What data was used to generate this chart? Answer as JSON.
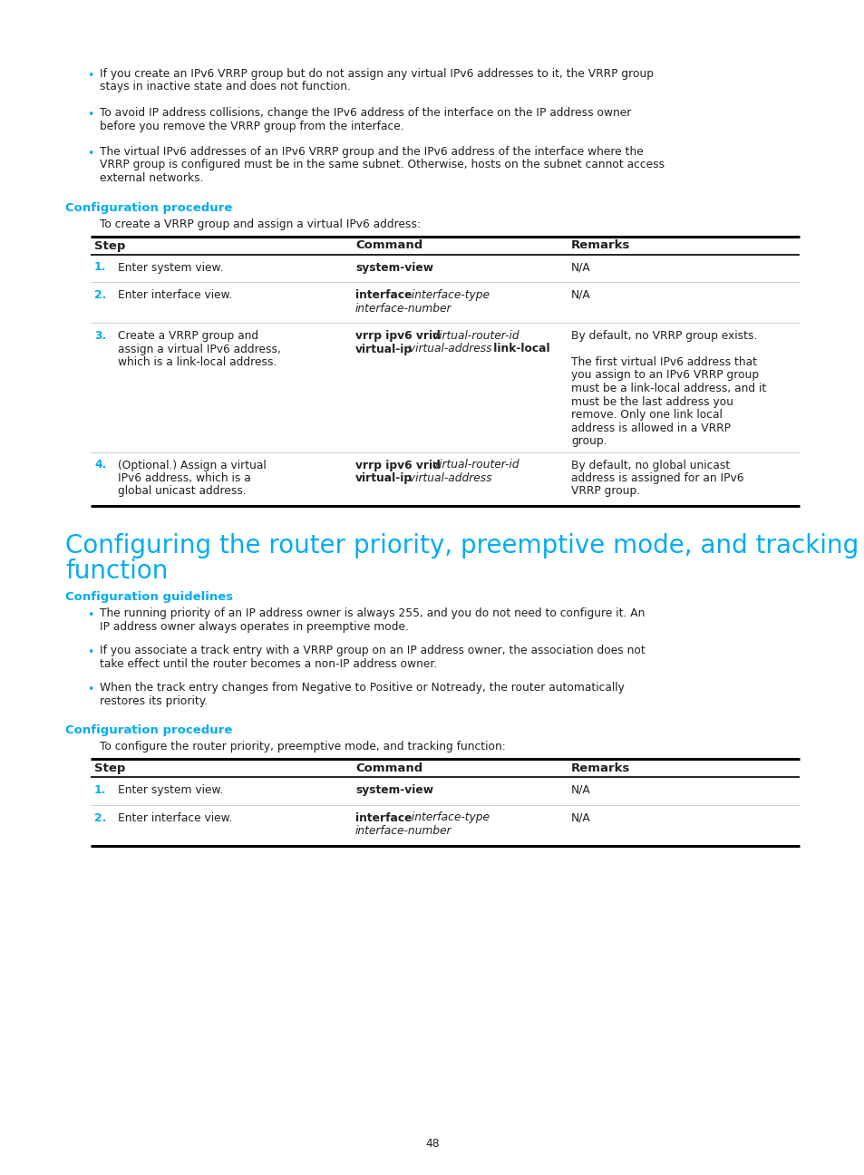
{
  "bg_color": "#ffffff",
  "text_color": "#231f20",
  "cyan_color": "#00adef",
  "page_number": "48",
  "bullet_points_top": [
    [
      "If you create an IPv6 VRRP group but do not assign any virtual IPv6 addresses to it, the VRRP group",
      "stays in inactive state and does not function."
    ],
    [
      "To avoid IP address collisions, change the IPv6 address of the interface on the IP address owner",
      "before you remove the VRRP group from the interface."
    ],
    [
      "The virtual IPv6 addresses of an IPv6 VRRP group and the IPv6 address of the interface where the",
      "VRRP group is configured must be in the same subnet. Otherwise, hosts on the subnet cannot access",
      "external networks."
    ]
  ],
  "section1_heading": "Configuration procedure",
  "section1_intro": "To create a VRRP group and assign a virtual IPv6 address:",
  "section2_heading_line1": "Configuring the router priority, preemptive mode, and tracking",
  "section2_heading_line2": "function",
  "section3_heading": "Configuration guidelines",
  "bullet_points_mid": [
    [
      "The running priority of an IP address owner is always 255, and you do not need to configure it. An",
      "IP address owner always operates in preemptive mode."
    ],
    [
      "If you associate a track entry with a VRRP group on an IP address owner, the association does not",
      "take effect until the router becomes a non-IP address owner."
    ],
    [
      "When the track entry changes from Negative to Positive or Notready, the router automatically",
      "restores its priority."
    ]
  ],
  "section4_heading": "Configuration procedure",
  "section4_intro": "To configure the router priority, preemptive mode, and tracking function:"
}
